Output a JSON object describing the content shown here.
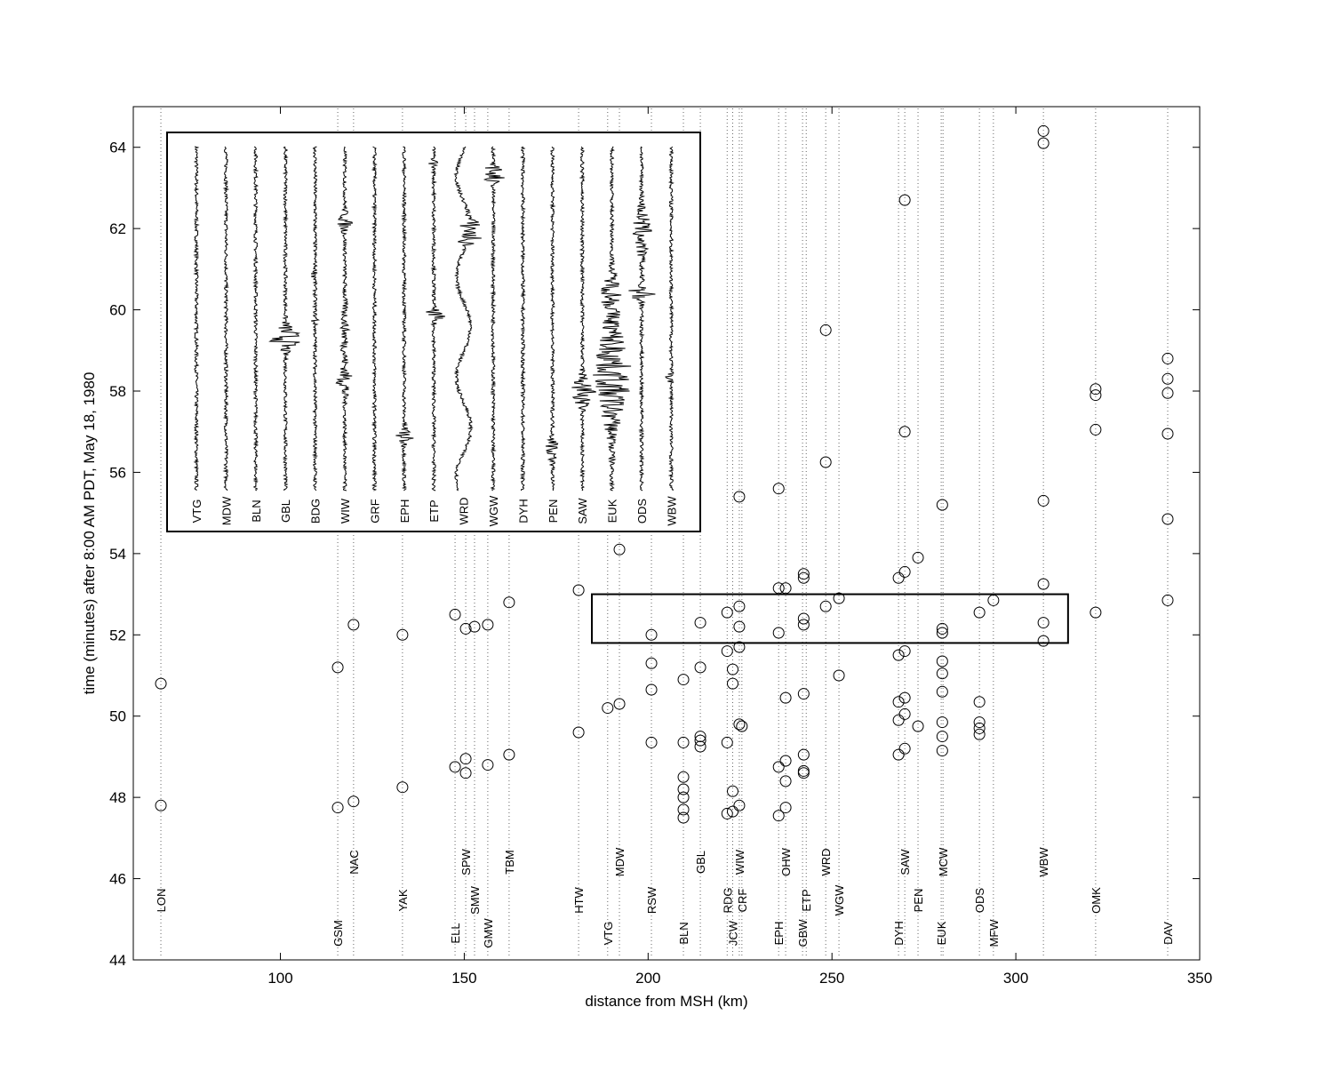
{
  "chart_data": {
    "type": "scatter",
    "xlabel": "distance from MSH (km)",
    "ylabel": "time (minutes) after 8:00 AM PDT, May 18, 1980",
    "xlim": [
      60,
      350
    ],
    "ylim": [
      44,
      65
    ],
    "xticks": [
      100,
      150,
      200,
      250,
      300,
      350
    ],
    "yticks": [
      44,
      46,
      48,
      50,
      52,
      54,
      56,
      58,
      60,
      62,
      64
    ],
    "color": "#000000",
    "x": [
      67.5,
      67.5,
      115.6,
      115.6,
      119.9,
      119.9,
      133.2,
      133.2,
      147.5,
      147.5,
      150.4,
      150.4,
      150.4,
      152.8,
      156.4,
      156.4,
      162.2,
      162.2,
      181.1,
      181.1,
      189.0,
      192.2,
      192.2,
      200.9,
      200.9,
      200.9,
      200.9,
      209.6,
      209.6,
      209.6,
      209.6,
      209.6,
      209.6,
      209.6,
      214.2,
      214.2,
      214.2,
      214.2,
      214.2,
      221.5,
      221.5,
      221.5,
      221.5,
      223.0,
      223.0,
      223.0,
      223.0,
      224.8,
      224.8,
      224.8,
      224.8,
      224.8,
      224.8,
      225.5,
      235.5,
      235.5,
      235.5,
      235.5,
      235.5,
      237.4,
      237.4,
      237.4,
      237.4,
      237.4,
      242.3,
      242.3,
      242.3,
      242.3,
      242.3,
      242.3,
      242.3,
      242.3,
      248.3,
      248.3,
      248.3,
      251.9,
      251.9,
      268.1,
      268.1,
      268.1,
      268.1,
      268.1,
      269.8,
      269.8,
      269.8,
      269.8,
      269.8,
      269.8,
      269.8,
      273.4,
      273.4,
      280.0,
      280.0,
      280.0,
      280.0,
      280.0,
      280.0,
      280.0,
      280.0,
      280.0,
      290.1,
      290.1,
      290.1,
      290.1,
      290.1,
      293.9,
      307.5,
      307.5,
      307.5,
      307.5,
      307.5,
      307.5,
      321.7,
      321.7,
      321.7,
      321.7,
      341.3,
      341.3,
      341.3,
      341.3,
      341.3,
      341.3
    ],
    "values": [
      50.8,
      47.8,
      51.2,
      47.75,
      52.25,
      47.9,
      52.0,
      48.25,
      52.5,
      48.75,
      52.15,
      48.95,
      48.6,
      52.2,
      52.25,
      48.8,
      52.8,
      49.05,
      53.1,
      49.6,
      50.2,
      54.1,
      50.3,
      52.0,
      51.3,
      50.65,
      49.35,
      50.9,
      49.35,
      48.5,
      48.2,
      48.0,
      47.7,
      47.5,
      52.3,
      51.2,
      49.5,
      49.4,
      49.25,
      52.55,
      51.6,
      49.35,
      47.6,
      51.15,
      50.8,
      48.15,
      47.65,
      55.4,
      52.7,
      52.2,
      51.7,
      49.8,
      47.8,
      49.75,
      55.6,
      53.15,
      52.05,
      48.75,
      47.55,
      53.15,
      50.45,
      48.9,
      48.4,
      47.75,
      53.5,
      53.4,
      52.4,
      52.25,
      50.55,
      49.05,
      48.65,
      48.6,
      59.5,
      56.25,
      52.7,
      52.9,
      51.0,
      53.4,
      51.5,
      50.35,
      49.9,
      49.05,
      62.7,
      57.0,
      53.55,
      51.6,
      50.45,
      50.05,
      49.2,
      53.9,
      49.75,
      55.2,
      52.15,
      52.05,
      51.35,
      51.05,
      50.6,
      49.85,
      49.5,
      49.15,
      52.55,
      50.35,
      49.85,
      49.7,
      49.55,
      52.85,
      64.4,
      64.1,
      55.3,
      53.25,
      52.3,
      51.85,
      58.05,
      57.9,
      57.05,
      52.55,
      58.8,
      58.3,
      57.95,
      56.95,
      54.85,
      52.85
    ],
    "stations": {
      "names": [
        "LON",
        "GSM",
        "NAC",
        "YAK",
        "ELL",
        "SPW",
        "SMW",
        "GMW",
        "TBM",
        "HTW",
        "VTG",
        "MDW",
        "RSW",
        "BLN",
        "GBL",
        "RDG",
        "JCW",
        "WIW",
        "CRF",
        "EPH",
        "OHW",
        "GBW",
        "ETP",
        "WRD",
        "WGW",
        "DYH",
        "SAW",
        "PEN",
        "EUK",
        "MCW",
        "ODS",
        "MFW",
        "WBW",
        "OMK",
        "DAV"
      ],
      "distances": [
        67.5,
        115.6,
        119.9,
        133.2,
        147.5,
        150.4,
        152.8,
        156.4,
        162.2,
        181.1,
        189.0,
        192.2,
        200.9,
        209.6,
        214.2,
        221.5,
        223.0,
        224.8,
        225.5,
        235.5,
        237.4,
        242.0,
        243.0,
        248.3,
        251.9,
        268.1,
        269.8,
        273.4,
        279.7,
        280.2,
        290.1,
        293.9,
        307.5,
        321.7,
        341.3
      ]
    },
    "highlight_box": {
      "xlim": [
        184.7,
        314.2
      ],
      "ylim": [
        51.8,
        53.0
      ]
    },
    "inset": {
      "labels": [
        "VTG",
        "MDW",
        "BLN",
        "GBL",
        "BDG",
        "WIW",
        "GRF",
        "EPH",
        "ETP",
        "WRD",
        "WGW",
        "DYH",
        "PEN",
        "SAW",
        "EUK",
        "ODS",
        "WBW"
      ]
    }
  }
}
